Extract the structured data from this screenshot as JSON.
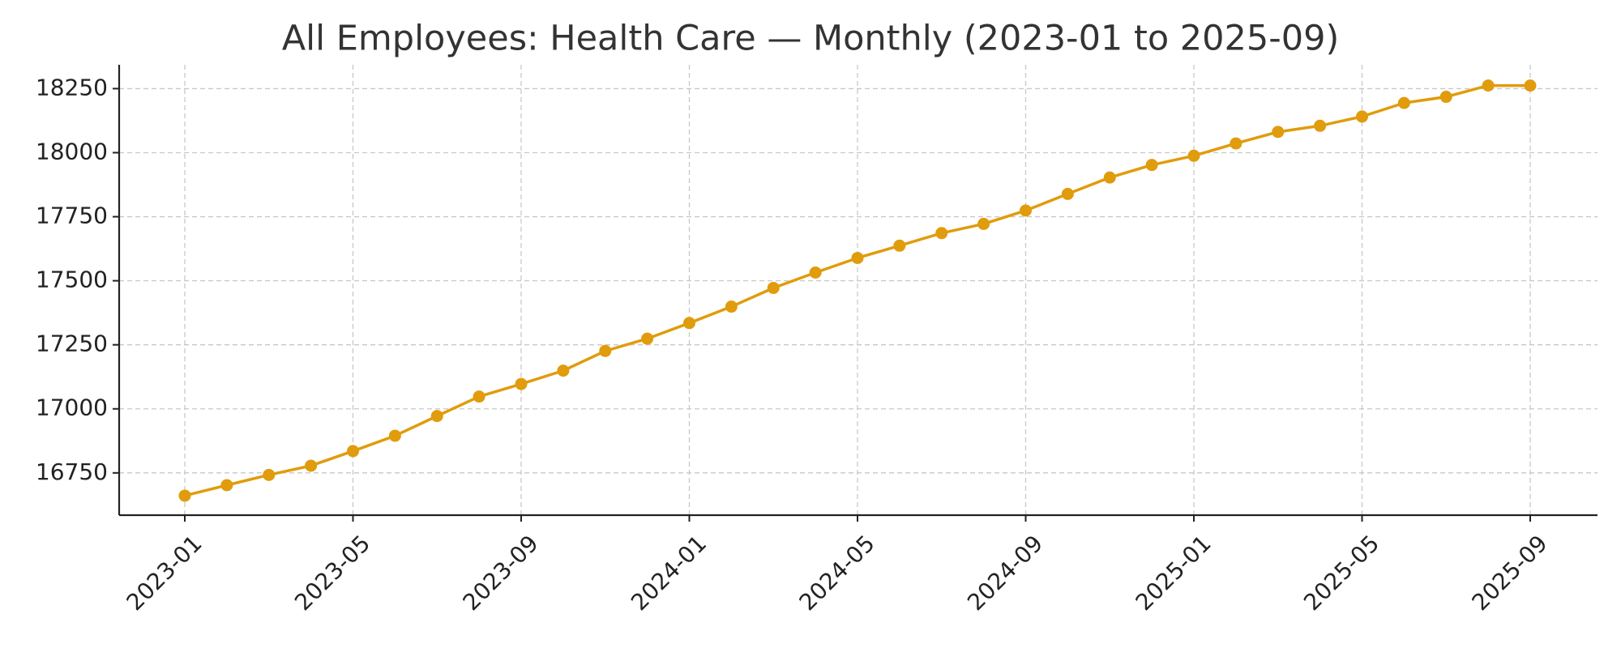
{
  "chart_data": {
    "type": "line",
    "title": "All Employees: Health Care — Monthly (2023-01 to 2025-09)",
    "x": [
      "2023-01",
      "2023-02",
      "2023-03",
      "2023-04",
      "2023-05",
      "2023-06",
      "2023-07",
      "2023-08",
      "2023-09",
      "2023-10",
      "2023-11",
      "2023-12",
      "2024-01",
      "2024-02",
      "2024-03",
      "2024-04",
      "2024-05",
      "2024-06",
      "2024-07",
      "2024-08",
      "2024-09",
      "2024-10",
      "2024-11",
      "2024-12",
      "2025-01",
      "2025-02",
      "2025-03",
      "2025-04",
      "2025-05",
      "2025-06",
      "2025-07",
      "2025-08",
      "2025-09"
    ],
    "series": [
      {
        "color": "#e09c0c",
        "values": [
          16661,
          16702,
          16742,
          16778,
          16835,
          16895,
          16972,
          17048,
          17097,
          17149,
          17226,
          17274,
          17335,
          17399,
          17472,
          17532,
          17589,
          17637,
          17686,
          17722,
          17774,
          17839,
          17903,
          17952,
          17988,
          18036,
          18081,
          18105,
          18141,
          18194,
          18218,
          18262,
          18262
        ]
      }
    ],
    "xticks": [
      "2023-01",
      "2023-05",
      "2023-09",
      "2024-01",
      "2024-05",
      "2024-09",
      "2025-01",
      "2025-05",
      "2025-09"
    ],
    "ylim": [
      16585,
      18343
    ],
    "yticks": [
      16750,
      17000,
      17250,
      17500,
      17750,
      18000,
      18250
    ],
    "grid": true
  }
}
